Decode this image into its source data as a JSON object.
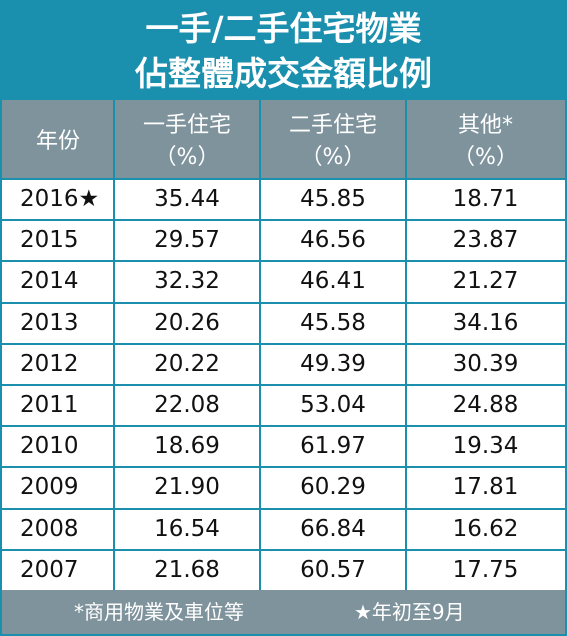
{
  "header": {
    "title": [
      "一手/二手住宅物業",
      "佔整體成交金額比例"
    ]
  },
  "table": {
    "columns": [
      {
        "label": "年份"
      },
      {
        "label": "一手住宅",
        "unit": "（%）"
      },
      {
        "label": "二手住宅",
        "unit": "（%）"
      },
      {
        "label": "其他*",
        "unit": "（%）"
      }
    ],
    "rows": [
      [
        "2016★",
        "35.44",
        "45.85",
        "18.71"
      ],
      [
        "2015",
        "29.57",
        "46.56",
        "23.87"
      ],
      [
        "2014",
        "32.32",
        "46.41",
        "21.27"
      ],
      [
        "2013",
        "20.26",
        "45.58",
        "34.16"
      ],
      [
        "2012",
        "20.22",
        "49.39",
        "30.39"
      ],
      [
        "2011",
        "22.08",
        "53.04",
        "24.88"
      ],
      [
        "2010",
        "18.69",
        "61.97",
        "19.34"
      ],
      [
        "2009",
        "21.90",
        "60.29",
        "17.81"
      ],
      [
        "2008",
        "16.54",
        "66.84",
        "16.62"
      ],
      [
        "2007",
        "21.68",
        "60.57",
        "17.75"
      ]
    ]
  },
  "footer": {
    "notes": [
      "*商用物業及車位等",
      "★年初至9月"
    ]
  }
}
